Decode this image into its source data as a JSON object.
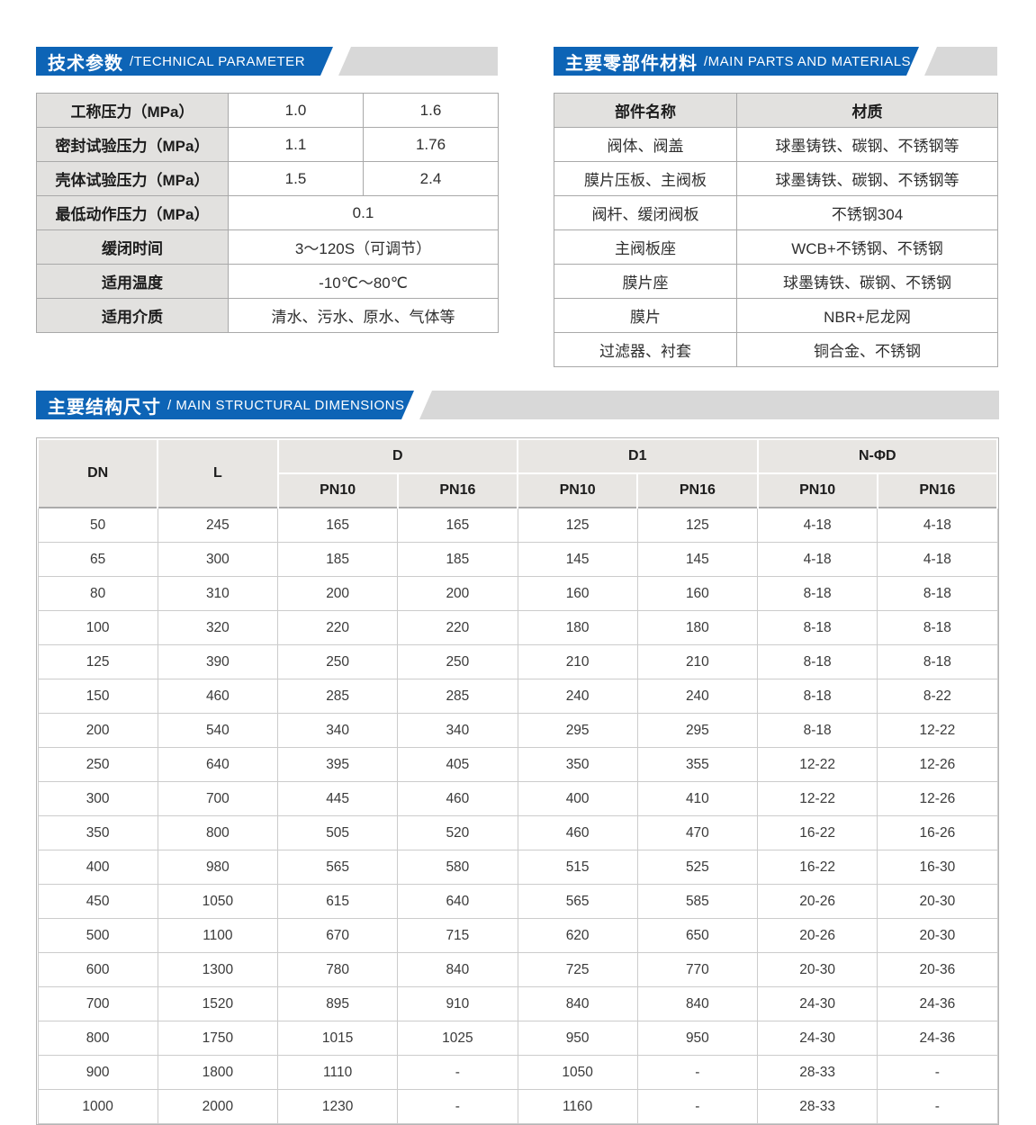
{
  "theme": {
    "accent_blue": "#0d64b6",
    "banner_gray": "#d8d8d8",
    "header_cell_gray": "#e8e6e3",
    "label_cell_gray": "#e2e1df"
  },
  "sections": {
    "technical": {
      "title_zh": "技术参数",
      "title_en": "/TECHNICAL PARAMETER",
      "table": {
        "rows": [
          {
            "label": "工称压力（MPa）",
            "values": [
              "1.0",
              "1.6"
            ]
          },
          {
            "label": "密封试验压力（MPa）",
            "values": [
              "1.1",
              "1.76"
            ]
          },
          {
            "label": "壳体试验压力（MPa）",
            "values": [
              "1.5",
              "2.4"
            ]
          },
          {
            "label": "最低动作压力（MPa）",
            "values": [
              "0.1"
            ]
          },
          {
            "label": "缓闭时间",
            "values": [
              "3～120S（可调节）"
            ]
          },
          {
            "label": "适用温度",
            "values": [
              "-10℃～80℃"
            ]
          },
          {
            "label": "适用介质",
            "values": [
              "清水、污水、原水、气体等"
            ]
          }
        ]
      }
    },
    "materials": {
      "title_zh": "主要零部件材料",
      "title_en": "/MAIN PARTS AND MATERIALS",
      "table": {
        "headers": [
          "部件名称",
          "材质"
        ],
        "rows": [
          [
            "阀体、阀盖",
            "球墨铸铁、碳钢、不锈钢等"
          ],
          [
            "膜片压板、主阀板",
            "球墨铸铁、碳钢、不锈钢等"
          ],
          [
            "阀杆、缓闭阀板",
            "不锈钢304"
          ],
          [
            "主阀板座",
            "WCB+不锈钢、不锈钢"
          ],
          [
            "膜片座",
            "球墨铸铁、碳钢、不锈钢"
          ],
          [
            "膜片",
            "NBR+尼龙网"
          ],
          [
            "过滤器、衬套",
            "铜合金、不锈钢"
          ]
        ]
      }
    },
    "dimensions": {
      "title_zh": "主要结构尺寸",
      "title_en": "/ MAIN STRUCTURAL DIMENSIONS",
      "table": {
        "col_groups": [
          {
            "label": "DN",
            "span": 1
          },
          {
            "label": "L",
            "span": 1
          },
          {
            "label": "D",
            "span": 2
          },
          {
            "label": "D1",
            "span": 2
          },
          {
            "label": "N-ΦD",
            "span": 2
          }
        ],
        "sub_headers": [
          "PN10",
          "PN16",
          "PN10",
          "PN16",
          "PN10",
          "PN16"
        ],
        "rows": [
          [
            "50",
            "245",
            "165",
            "165",
            "125",
            "125",
            "4-18",
            "4-18"
          ],
          [
            "65",
            "300",
            "185",
            "185",
            "145",
            "145",
            "4-18",
            "4-18"
          ],
          [
            "80",
            "310",
            "200",
            "200",
            "160",
            "160",
            "8-18",
            "8-18"
          ],
          [
            "100",
            "320",
            "220",
            "220",
            "180",
            "180",
            "8-18",
            "8-18"
          ],
          [
            "125",
            "390",
            "250",
            "250",
            "210",
            "210",
            "8-18",
            "8-18"
          ],
          [
            "150",
            "460",
            "285",
            "285",
            "240",
            "240",
            "8-18",
            "8-22"
          ],
          [
            "200",
            "540",
            "340",
            "340",
            "295",
            "295",
            "8-18",
            "12-22"
          ],
          [
            "250",
            "640",
            "395",
            "405",
            "350",
            "355",
            "12-22",
            "12-26"
          ],
          [
            "300",
            "700",
            "445",
            "460",
            "400",
            "410",
            "12-22",
            "12-26"
          ],
          [
            "350",
            "800",
            "505",
            "520",
            "460",
            "470",
            "16-22",
            "16-26"
          ],
          [
            "400",
            "980",
            "565",
            "580",
            "515",
            "525",
            "16-22",
            "16-30"
          ],
          [
            "450",
            "1050",
            "615",
            "640",
            "565",
            "585",
            "20-26",
            "20-30"
          ],
          [
            "500",
            "1100",
            "670",
            "715",
            "620",
            "650",
            "20-26",
            "20-30"
          ],
          [
            "600",
            "1300",
            "780",
            "840",
            "725",
            "770",
            "20-30",
            "20-36"
          ],
          [
            "700",
            "1520",
            "895",
            "910",
            "840",
            "840",
            "24-30",
            "24-36"
          ],
          [
            "800",
            "1750",
            "1015",
            "1025",
            "950",
            "950",
            "24-30",
            "24-36"
          ],
          [
            "900",
            "1800",
            "1110",
            "-",
            "1050",
            "-",
            "28-33",
            "-"
          ],
          [
            "1000",
            "2000",
            "1230",
            "-",
            "1160",
            "-",
            "28-33",
            "-"
          ]
        ]
      }
    }
  }
}
